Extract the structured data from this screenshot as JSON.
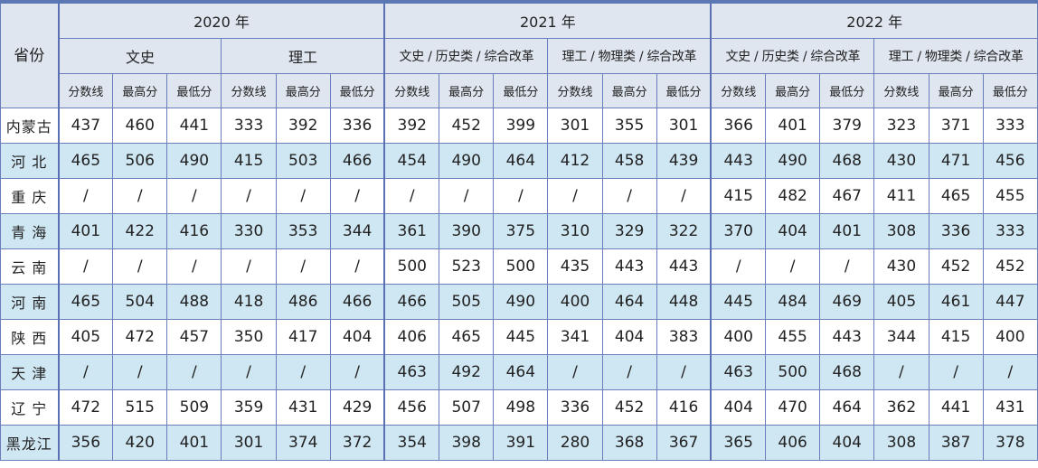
{
  "header": {
    "province_label": "省份",
    "years": [
      "2020 年",
      "2021 年",
      "2022 年"
    ],
    "categories": [
      [
        "文史",
        "理工"
      ],
      [
        "文史 / 历史类 / 综合改革",
        "理工 / 物理类 / 综合改革"
      ],
      [
        "文史 / 历史类 / 综合改革",
        "理工 / 物理类 / 综合改革"
      ]
    ],
    "sub_columns": [
      "分数线",
      "最高分",
      "最低分"
    ]
  },
  "rows": [
    {
      "province": "内蒙古",
      "values": [
        "437",
        "460",
        "441",
        "333",
        "392",
        "336",
        "392",
        "452",
        "399",
        "301",
        "355",
        "301",
        "366",
        "401",
        "379",
        "323",
        "371",
        "333"
      ]
    },
    {
      "province": "河 北",
      "values": [
        "465",
        "506",
        "490",
        "415",
        "503",
        "466",
        "454",
        "490",
        "464",
        "412",
        "458",
        "439",
        "443",
        "490",
        "468",
        "430",
        "471",
        "456"
      ]
    },
    {
      "province": "重 庆",
      "values": [
        "/",
        "/",
        "/",
        "/",
        "/",
        "/",
        "/",
        "/",
        "/",
        "/",
        "/",
        "/",
        "415",
        "482",
        "467",
        "411",
        "465",
        "455"
      ]
    },
    {
      "province": "青 海",
      "values": [
        "401",
        "422",
        "416",
        "330",
        "353",
        "344",
        "361",
        "390",
        "375",
        "310",
        "329",
        "322",
        "370",
        "404",
        "401",
        "308",
        "336",
        "333"
      ]
    },
    {
      "province": "云 南",
      "values": [
        "/",
        "/",
        "/",
        "/",
        "/",
        "/",
        "500",
        "523",
        "500",
        "435",
        "443",
        "443",
        "/",
        "/",
        "/",
        "430",
        "452",
        "452"
      ]
    },
    {
      "province": "河 南",
      "values": [
        "465",
        "504",
        "488",
        "418",
        "486",
        "466",
        "466",
        "505",
        "490",
        "400",
        "464",
        "448",
        "445",
        "484",
        "469",
        "405",
        "461",
        "447"
      ]
    },
    {
      "province": "陕 西",
      "values": [
        "405",
        "472",
        "457",
        "350",
        "417",
        "404",
        "406",
        "465",
        "445",
        "341",
        "404",
        "383",
        "400",
        "455",
        "443",
        "344",
        "415",
        "400"
      ]
    },
    {
      "province": "天 津",
      "values": [
        "/",
        "/",
        "/",
        "/",
        "/",
        "/",
        "463",
        "492",
        "464",
        "/",
        "/",
        "/",
        "463",
        "500",
        "468",
        "/",
        "/",
        "/"
      ]
    },
    {
      "province": "辽 宁",
      "values": [
        "472",
        "515",
        "509",
        "359",
        "431",
        "429",
        "456",
        "507",
        "498",
        "336",
        "452",
        "416",
        "404",
        "470",
        "464",
        "362",
        "441",
        "431"
      ]
    },
    {
      "province": "黑龙江",
      "values": [
        "356",
        "420",
        "401",
        "301",
        "374",
        "372",
        "354",
        "398",
        "391",
        "280",
        "368",
        "367",
        "365",
        "406",
        "404",
        "308",
        "387",
        "378"
      ]
    }
  ]
}
